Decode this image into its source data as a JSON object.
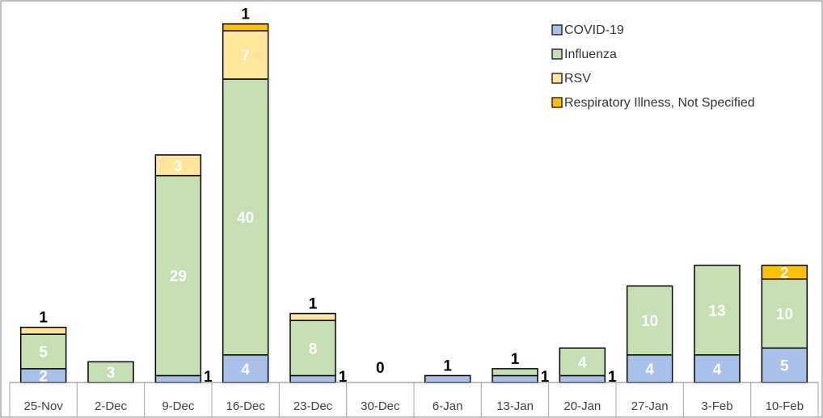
{
  "chart_data": {
    "type": "bar",
    "stacked": true,
    "categories": [
      "25-Nov",
      "2-Dec",
      "9-Dec",
      "16-Dec",
      "23-Dec",
      "30-Dec",
      "6-Jan",
      "13-Jan",
      "20-Jan",
      "27-Jan",
      "3-Feb",
      "10-Feb"
    ],
    "series": [
      {
        "name": "COVID-19",
        "color": "#a9c1e8",
        "values": [
          2,
          0,
          1,
          4,
          1,
          0,
          1,
          1,
          1,
          4,
          4,
          5
        ]
      },
      {
        "name": "Influenza",
        "color": "#c6e0b4",
        "values": [
          5,
          3,
          29,
          40,
          8,
          0,
          0,
          1,
          4,
          10,
          13,
          10
        ]
      },
      {
        "name": "RSV",
        "color": "#ffe699",
        "values": [
          1,
          0,
          3,
          7,
          1,
          0,
          0,
          0,
          0,
          0,
          0,
          0
        ]
      },
      {
        "name": "Respiratory Illness, Not Specified",
        "color": "#ffc000",
        "values": [
          0,
          0,
          0,
          1,
          0,
          0,
          0,
          0,
          0,
          0,
          0,
          2
        ]
      }
    ],
    "data_labels": [
      {
        "category": "25-Nov",
        "text": "2",
        "series": "COVID-19",
        "placement": "inside"
      },
      {
        "category": "25-Nov",
        "text": "5",
        "series": "Influenza",
        "placement": "inside"
      },
      {
        "category": "25-Nov",
        "text": "1",
        "series": "RSV",
        "placement": "above"
      },
      {
        "category": "2-Dec",
        "text": "3",
        "series": "Influenza",
        "placement": "inside"
      },
      {
        "category": "9-Dec",
        "text": "1",
        "series": "COVID-19",
        "placement": "right"
      },
      {
        "category": "9-Dec",
        "text": "29",
        "series": "Influenza",
        "placement": "inside"
      },
      {
        "category": "9-Dec",
        "text": "3",
        "series": "RSV",
        "placement": "inside"
      },
      {
        "category": "16-Dec",
        "text": "4",
        "series": "COVID-19",
        "placement": "inside"
      },
      {
        "category": "16-Dec",
        "text": "40",
        "series": "Influenza",
        "placement": "inside"
      },
      {
        "category": "16-Dec",
        "text": "7",
        "series": "RSV",
        "placement": "inside"
      },
      {
        "category": "16-Dec",
        "text": "1",
        "series": "Respiratory Illness, Not Specified",
        "placement": "above"
      },
      {
        "category": "23-Dec",
        "text": "1",
        "series": "COVID-19",
        "placement": "right"
      },
      {
        "category": "23-Dec",
        "text": "8",
        "series": "Influenza",
        "placement": "inside"
      },
      {
        "category": "23-Dec",
        "text": "1",
        "series": "RSV",
        "placement": "above"
      },
      {
        "category": "30-Dec",
        "text": "0",
        "series": "",
        "placement": "above"
      },
      {
        "category": "6-Jan",
        "text": "1",
        "series": "COVID-19",
        "placement": "above"
      },
      {
        "category": "13-Jan",
        "text": "1",
        "series": "COVID-19",
        "placement": "right"
      },
      {
        "category": "13-Jan",
        "text": "1",
        "series": "Influenza",
        "placement": "above"
      },
      {
        "category": "20-Jan",
        "text": "1",
        "series": "COVID-19",
        "placement": "right"
      },
      {
        "category": "20-Jan",
        "text": "4",
        "series": "Influenza",
        "placement": "inside"
      },
      {
        "category": "27-Jan",
        "text": "4",
        "series": "COVID-19",
        "placement": "inside"
      },
      {
        "category": "27-Jan",
        "text": "10",
        "series": "Influenza",
        "placement": "inside"
      },
      {
        "category": "3-Feb",
        "text": "4",
        "series": "COVID-19",
        "placement": "inside"
      },
      {
        "category": "3-Feb",
        "text": "13",
        "series": "Influenza",
        "placement": "inside"
      },
      {
        "category": "10-Feb",
        "text": "5",
        "series": "COVID-19",
        "placement": "inside"
      },
      {
        "category": "10-Feb",
        "text": "10",
        "series": "Influenza",
        "placement": "inside"
      },
      {
        "category": "10-Feb",
        "text": "2",
        "series": "Respiratory Illness, Not Specified",
        "placement": "inside"
      }
    ],
    "ylim": [
      0,
      52.5
    ],
    "title": "",
    "xlabel": "",
    "ylabel": "",
    "legend_position": "top-right",
    "grid": false
  }
}
